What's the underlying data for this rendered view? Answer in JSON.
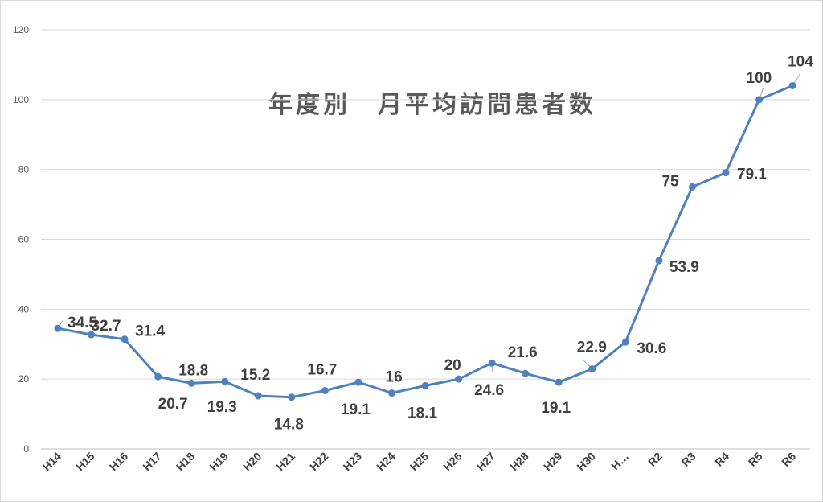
{
  "chart_data": {
    "type": "line",
    "title": "年度別　月平均訪問患者数",
    "xlabel": "",
    "ylabel": "",
    "ylim": [
      0,
      120
    ],
    "yticks": [
      0,
      20,
      40,
      60,
      80,
      100,
      120
    ],
    "grid": true,
    "legend": "none",
    "categories": [
      "H14",
      "H15",
      "H16",
      "H17",
      "H18",
      "H19",
      "H20",
      "H21",
      "H22",
      "H23",
      "H24",
      "H25",
      "H26",
      "H27",
      "H28",
      "H29",
      "H30",
      "H…",
      "R2",
      "R3",
      "R4",
      "R5",
      "R6"
    ],
    "series": [
      {
        "values": [
          34.5,
          32.7,
          31.4,
          20.7,
          18.8,
          19.3,
          15.2,
          14.8,
          16.7,
          19.1,
          16,
          18.1,
          20,
          24.6,
          21.6,
          19.1,
          22.9,
          30.6,
          53.9,
          75,
          79.1,
          100,
          104
        ],
        "labels": [
          "34.5",
          "32.7",
          "31.4",
          "20.7",
          "18.8",
          "19.3",
          "15.2",
          "14.8",
          "16.7",
          "19.1",
          "16",
          "18.1",
          "20",
          "24.6",
          "21.6",
          "19.1",
          "22.9",
          "30.6",
          "53.9",
          "75",
          "79.1",
          "100",
          "104"
        ],
        "color": "#4f81bd"
      }
    ]
  }
}
